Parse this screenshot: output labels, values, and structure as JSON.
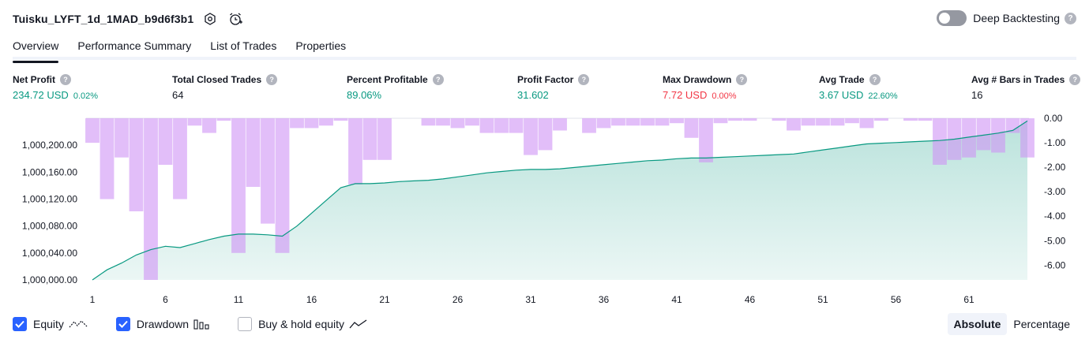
{
  "header": {
    "strategy_name": "Tuisku_LYFT_1d_1MAD_b9d6f3b1",
    "deep_backtesting_label": "Deep Backtesting",
    "help_glyph": "?"
  },
  "tabs": [
    {
      "label": "Overview",
      "active": true
    },
    {
      "label": "Performance Summary",
      "active": false
    },
    {
      "label": "List of Trades",
      "active": false
    },
    {
      "label": "Properties",
      "active": false
    }
  ],
  "metrics": {
    "net_profit": {
      "label": "Net Profit",
      "value": "234.72 USD",
      "pct": "0.02%"
    },
    "total_closed_trades": {
      "label": "Total Closed Trades",
      "value": "64"
    },
    "percent_profitable": {
      "label": "Percent Profitable",
      "value": "89.06%"
    },
    "profit_factor": {
      "label": "Profit Factor",
      "value": "31.602"
    },
    "max_drawdown": {
      "label": "Max Drawdown",
      "value": "7.72 USD",
      "pct": "0.00%"
    },
    "avg_trade": {
      "label": "Avg Trade",
      "value": "3.67 USD",
      "pct": "22.60%"
    },
    "avg_bars": {
      "label": "Avg # Bars in Trades",
      "value": "16"
    }
  },
  "chart_data": {
    "type": "area",
    "x_ticks": [
      1,
      6,
      11,
      16,
      21,
      26,
      31,
      36,
      41,
      46,
      51,
      56,
      61
    ],
    "left_axis": {
      "ylim": [
        1000000,
        1000240
      ],
      "ticks": [
        "1,000,000.00",
        "1,000,040.00",
        "1,000,080.00",
        "1,000,120.00",
        "1,000,160.00",
        "1,000,200.00"
      ],
      "tick_values": [
        1000000,
        1000040,
        1000080,
        1000120,
        1000160,
        1000200
      ]
    },
    "right_axis": {
      "ylim": [
        -6.6,
        0
      ],
      "ticks": [
        "0.00",
        "-1.00",
        "-2.00",
        "-3.00",
        "-4.00",
        "-5.00",
        "-6.00"
      ],
      "tick_values": [
        0,
        -1,
        -2,
        -3,
        -4,
        -5,
        -6
      ]
    },
    "series": [
      {
        "name": "Equity",
        "axis": "left",
        "x": [
          1,
          2,
          3,
          4,
          5,
          6,
          7,
          8,
          9,
          10,
          11,
          12,
          13,
          14,
          15,
          16,
          17,
          18,
          19,
          20,
          21,
          22,
          23,
          24,
          25,
          26,
          27,
          28,
          29,
          30,
          31,
          32,
          33,
          34,
          35,
          36,
          37,
          38,
          39,
          40,
          41,
          42,
          43,
          44,
          45,
          46,
          47,
          48,
          49,
          50,
          51,
          52,
          53,
          54,
          55,
          56,
          57,
          58,
          59,
          60,
          61,
          62,
          63,
          64,
          65
        ],
        "values": [
          1000000,
          1000015,
          1000025,
          1000037,
          1000045,
          1000050,
          1000048,
          1000054,
          1000060,
          1000065,
          1000068,
          1000068,
          1000067,
          1000065,
          1000080,
          1000099,
          1000118,
          1000137,
          1000143,
          1000143,
          1000144,
          1000146,
          1000147,
          1000148,
          1000150,
          1000153,
          1000156,
          1000159,
          1000161,
          1000163,
          1000164,
          1000164,
          1000165,
          1000167,
          1000169,
          1000171,
          1000173,
          1000175,
          1000177,
          1000178,
          1000180,
          1000181,
          1000181,
          1000182,
          1000183,
          1000184,
          1000185,
          1000186,
          1000187,
          1000190,
          1000193,
          1000196,
          1000199,
          1000202,
          1000203,
          1000204,
          1000205,
          1000206,
          1000207,
          1000209,
          1000212,
          1000215,
          1000218,
          1000222,
          1000236
        ]
      },
      {
        "name": "Drawdown",
        "axis": "right",
        "x": [
          1,
          2,
          3,
          4,
          5,
          6,
          7,
          8,
          9,
          10,
          11,
          12,
          13,
          14,
          15,
          16,
          17,
          18,
          19,
          20,
          21,
          22,
          23,
          24,
          25,
          26,
          27,
          28,
          29,
          30,
          31,
          32,
          33,
          34,
          35,
          36,
          37,
          38,
          39,
          40,
          41,
          42,
          43,
          44,
          45,
          46,
          47,
          48,
          49,
          50,
          51,
          52,
          53,
          54,
          55,
          56,
          57,
          58,
          59,
          60,
          61,
          62,
          63,
          64,
          65
        ],
        "values": [
          -1.0,
          -3.3,
          -1.6,
          -3.8,
          -6.6,
          -1.9,
          -3.3,
          -0.3,
          -0.6,
          -0.1,
          -5.5,
          -2.8,
          -4.3,
          -5.5,
          -0.4,
          -0.4,
          -0.3,
          -0.1,
          -2.7,
          -1.7,
          -1.7,
          0,
          0,
          -0.3,
          -0.3,
          -0.4,
          -0.3,
          -0.6,
          -0.6,
          -0.6,
          -1.5,
          -1.3,
          -0.5,
          0,
          -0.6,
          -0.4,
          -0.3,
          -0.3,
          -0.3,
          -0.3,
          -0.2,
          -0.8,
          -1.8,
          -0.2,
          -0.1,
          -0.1,
          0,
          -0.1,
          -0.5,
          -0.3,
          -0.3,
          -0.3,
          -0.2,
          -0.4,
          -0.1,
          0,
          -0.1,
          -0.1,
          -1.9,
          -1.7,
          -1.6,
          -1.3,
          -1.4,
          -0.6,
          -1.6
        ]
      }
    ],
    "colors": {
      "equity_line": "#089981",
      "equity_fill": "#089981",
      "drawdown_bar": "#ce93f5",
      "grid": "#f0f3fa",
      "axis_text": "#131722"
    }
  },
  "bottom": {
    "equity_label": "Equity",
    "drawdown_label": "Drawdown",
    "buy_hold_label": "Buy & hold equity",
    "absolute_label": "Absolute",
    "percentage_label": "Percentage"
  }
}
